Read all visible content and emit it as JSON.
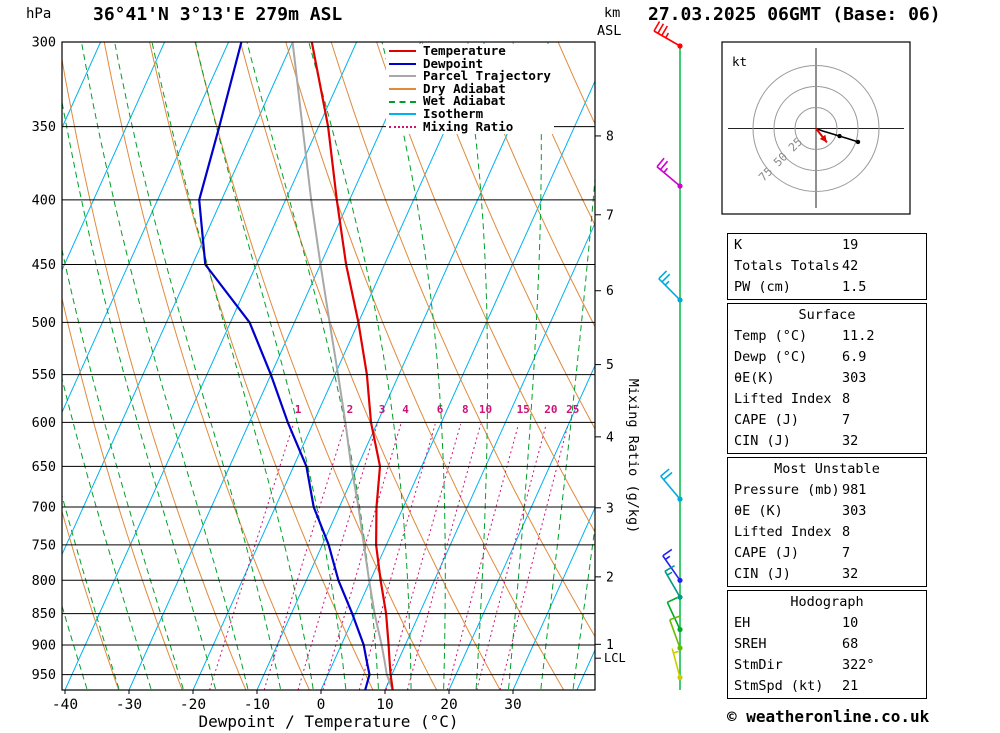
{
  "header": {
    "station": "36°41'N 3°13'E 279m ASL",
    "datetime": "27.03.2025 06GMT (Base: 06)",
    "pressure_unit": "hPa",
    "km_label_1": "km",
    "km_label_2": "ASL"
  },
  "axes": {
    "xlabel": "Dewpoint / Temperature (°C)",
    "mixing_ratio_label": "Mixing Ratio (g/kg)",
    "pressure_ticks": [
      300,
      350,
      400,
      450,
      500,
      550,
      600,
      650,
      700,
      750,
      800,
      850,
      900,
      950
    ],
    "temp_ticks": [
      -40,
      -30,
      -20,
      -10,
      0,
      10,
      20,
      30
    ],
    "km_ticks": [
      {
        "km": 8,
        "p": 356
      },
      {
        "km": 7,
        "p": 411
      },
      {
        "km": 6,
        "p": 472
      },
      {
        "km": 5,
        "p": 540
      },
      {
        "km": 4,
        "p": 616
      },
      {
        "km": 3,
        "p": 701
      },
      {
        "km": 2,
        "p": 795
      },
      {
        "km": 1,
        "p": 899
      }
    ],
    "lcl": {
      "label": "LCL",
      "p": 922
    }
  },
  "legend": [
    {
      "label": "Temperature",
      "color": "#e00000",
      "style": "solid"
    },
    {
      "label": "Dewpoint",
      "color": "#0000cc",
      "style": "solid"
    },
    {
      "label": "Parcel Trajectory",
      "color": "#a8a8a8",
      "style": "solid"
    },
    {
      "label": "Dry Adiabat",
      "color": "#e08a3c",
      "style": "solid"
    },
    {
      "label": "Wet Adiabat",
      "color": "#00a028",
      "style": "dashed"
    },
    {
      "label": "Isotherm",
      "color": "#00b2f0",
      "style": "solid"
    },
    {
      "label": "Mixing Ratio",
      "color": "#cc1477",
      "style": "dotted"
    }
  ],
  "colors": {
    "temperature": "#e00000",
    "dewpoint": "#0000cc",
    "parcel": "#a8a8a8",
    "dry_adiabat": "#e08a3c",
    "wet_adiabat": "#00a028",
    "isotherm": "#00b2f0",
    "mixing_ratio": "#cc1477",
    "wind_column": "#00bb44",
    "grid": "#000000"
  },
  "chart_data": {
    "type": "skewt_log_p_sounding",
    "pressure_range_hpa": [
      300,
      977
    ],
    "temp_axis_range_c": [
      -40,
      43
    ],
    "isotherm_step_c": 10,
    "dry_adiabat_step_c": 10,
    "wet_adiabat_step_c": 5,
    "mixing_ratio_lines_g_kg": [
      1,
      2,
      3,
      4,
      6,
      8,
      10,
      15,
      20,
      25
    ],
    "temperature_profile": {
      "pressure_hpa": [
        977,
        950,
        925,
        900,
        850,
        800,
        750,
        700,
        650,
        600,
        550,
        500,
        450,
        400,
        350,
        300
      ],
      "temp_c": [
        11.2,
        9.8,
        8.6,
        7.4,
        4.8,
        1.6,
        -1.6,
        -4.2,
        -6.5,
        -11,
        -15,
        -20,
        -26,
        -32,
        -38.5,
        -47
      ]
    },
    "dewpoint_profile": {
      "pressure_hpa": [
        977,
        950,
        925,
        900,
        850,
        800,
        750,
        700,
        650,
        600,
        550,
        500,
        450,
        400,
        350,
        300
      ],
      "dewpoint_c": [
        6.9,
        6.5,
        5,
        3.5,
        -0.5,
        -5,
        -9,
        -14,
        -18,
        -24,
        -30,
        -37,
        -48,
        -53.5,
        -55.5,
        -58
      ]
    },
    "parcel_trajectory": {
      "pressure_hpa": [
        977,
        950,
        925,
        900,
        850,
        800,
        750,
        700,
        650,
        600,
        550,
        500,
        450,
        400,
        350,
        300
      ],
      "temp_c": [
        11.2,
        9.2,
        7.8,
        6.3,
        3,
        -0.2,
        -3.5,
        -7,
        -11,
        -15,
        -19.5,
        -24.5,
        -30,
        -36,
        -42.5,
        -50
      ]
    }
  },
  "wind_barbs": [
    {
      "pressure_hpa": 300,
      "speed_kt": 35,
      "dir_deg": 300,
      "color": "#ff0000"
    },
    {
      "pressure_hpa": 390,
      "speed_kt": 25,
      "dir_deg": 310,
      "color": "#cc00cc"
    },
    {
      "pressure_hpa": 480,
      "speed_kt": 25,
      "dir_deg": 315,
      "color": "#00aadd"
    },
    {
      "pressure_hpa": 690,
      "speed_kt": 20,
      "dir_deg": 320,
      "color": "#00aadd"
    },
    {
      "pressure_hpa": 800,
      "speed_kt": 15,
      "dir_deg": 325,
      "color": "#2222ee"
    },
    {
      "pressure_hpa": 825,
      "speed_kt": 15,
      "dir_deg": 330,
      "color": "#009988"
    },
    {
      "pressure_hpa": 875,
      "speed_kt": 10,
      "dir_deg": 335,
      "color": "#00aa22"
    },
    {
      "pressure_hpa": 905,
      "speed_kt": 10,
      "dir_deg": 340,
      "color": "#66bb00"
    },
    {
      "pressure_hpa": 955,
      "speed_kt": 5,
      "dir_deg": 345,
      "color": "#cccc00"
    }
  ],
  "hodograph": {
    "unit_label": "kt",
    "ring_labels": [
      25,
      50,
      75
    ],
    "trace_kt": [
      [
        0,
        0
      ],
      [
        8,
        -3
      ],
      [
        18,
        -6
      ],
      [
        28,
        -9
      ],
      [
        38,
        -12
      ],
      [
        50,
        -16
      ]
    ],
    "trace_dots_kt": [
      [
        28,
        -9
      ],
      [
        50,
        -16
      ]
    ],
    "storm_motion": {
      "dir_deg": 322,
      "speed_kt": 21
    }
  },
  "tables": [
    {
      "title": null,
      "rows": [
        [
          "K",
          "19"
        ],
        [
          "Totals Totals",
          "42"
        ],
        [
          "PW (cm)",
          "1.5"
        ]
      ]
    },
    {
      "title": "Surface",
      "rows": [
        [
          "Temp (°C)",
          "11.2"
        ],
        [
          "Dewp (°C)",
          "6.9"
        ],
        [
          "θE(K)",
          "303"
        ],
        [
          "Lifted Index",
          "8"
        ],
        [
          "CAPE (J)",
          "7"
        ],
        [
          "CIN (J)",
          "32"
        ]
      ]
    },
    {
      "title": "Most Unstable",
      "rows": [
        [
          "Pressure (mb)",
          "981"
        ],
        [
          "θE (K)",
          "303"
        ],
        [
          "Lifted Index",
          "8"
        ],
        [
          "CAPE (J)",
          "7"
        ],
        [
          "CIN (J)",
          "32"
        ]
      ]
    },
    {
      "title": "Hodograph",
      "rows": [
        [
          "EH",
          "10"
        ],
        [
          "SREH",
          "68"
        ],
        [
          "StmDir",
          "322°"
        ],
        [
          "StmSpd (kt)",
          "21"
        ]
      ]
    }
  ],
  "footer": {
    "copyright": "© weatheronline.co.uk"
  }
}
